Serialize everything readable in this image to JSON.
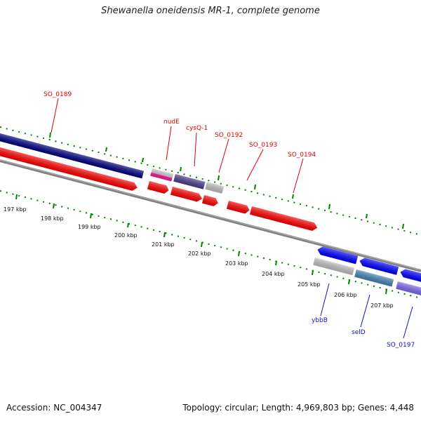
{
  "title": "Shewanella oneidensis MR-1, complete genome",
  "footer": {
    "accession": "Accession: NC_004347",
    "summary": "Topology: circular; Length: 4,969,803 bp; Genes: 4,448"
  },
  "colors": {
    "forward_cds": "#ff0000",
    "reverse_cds": "#0000ff",
    "navy_feature": "#000080",
    "slate_feature": "#483d8b",
    "magenta_feature": "#ff1493",
    "grey_feature": "#c0c0c0",
    "steelblue_feature": "#4682b4",
    "mediumslate_feature": "#7b68ee",
    "backbone": "#808080",
    "tick_green": "#008000",
    "label_forward": "#e00000",
    "label_reverse": "#1010c8"
  },
  "scale_labels": [
    "197 kbp",
    "198 kbp",
    "199 kbp",
    "200 kbp",
    "201 kbp",
    "202 kbp",
    "203 kbp",
    "204 kbp",
    "205 kbp",
    "206 kbp",
    "207 kbp"
  ],
  "top_labels": [
    "SO_0189",
    "nudE",
    "cysQ-1",
    "SO_0192",
    "SO_0193",
    "SO_0194"
  ],
  "bottom_labels": [
    "ybbB",
    "selD",
    "SO_0197"
  ]
}
